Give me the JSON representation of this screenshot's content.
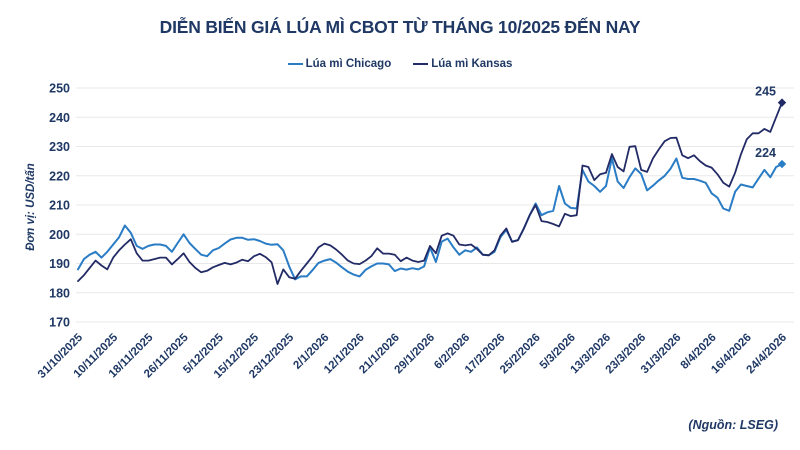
{
  "title": "DIỄN BIẾN GIÁ LÚA MÌ CBOT TỪ THÁNG 10/2025 ĐẾN NAY",
  "source_note": "(Nguồn: LSEG)",
  "y_axis_unit_label": "Đơn vị: USD/tấn",
  "colors": {
    "chicago": "#2A7CC5",
    "kansas": "#232B66",
    "text_navy": "#1F3864",
    "gridline": "#E8E8E8"
  },
  "legend": [
    {
      "label": "Lúa mì Chicago",
      "color_key": "chicago"
    },
    {
      "label": "Lúa mì Kansas",
      "color_key": "kansas"
    }
  ],
  "end_labels": {
    "kansas": "245",
    "chicago": "224"
  },
  "chart_data": {
    "type": "line",
    "title": "DIỄN BIẾN GIÁ LÚA MÌ CBOT TỪ THÁNG 10/2025 ĐẾN NAY",
    "xlabel": "",
    "ylabel": "Đơn vị: USD/tấn",
    "ylim": [
      170,
      250
    ],
    "y_ticks": [
      170,
      180,
      190,
      200,
      210,
      220,
      230,
      240,
      250
    ],
    "grid": "horizontal",
    "legend_position": "top",
    "ticks_every_n_points": 6,
    "x_tick_labels": [
      "31/10/2025",
      "10/11/2025",
      "18/11/2025",
      "26/11/2025",
      "5/12/2025",
      "15/12/2025",
      "23/12/2025",
      "2/1/2026",
      "12/1/2026",
      "21/1/2026",
      "29/1/2026",
      "6/2/2026",
      "17/2/2026",
      "25/2/2026",
      "5/3/2026",
      "13/3/2026",
      "23/3/2026",
      "31/3/2026",
      "8/4/2026",
      "16/4/2026",
      "24/4/2026"
    ],
    "series": [
      {
        "name": "Lúa mì Chicago",
        "color": "#2A7CC5",
        "end_value_label": "224",
        "values": [
          188,
          191.5,
          193,
          194,
          192,
          194,
          196.5,
          199,
          203,
          200.5,
          196,
          195,
          196,
          196.5,
          196.5,
          196,
          194,
          197,
          200,
          197,
          195,
          193,
          192.5,
          194.5,
          195.3,
          196.8,
          198.2,
          198.8,
          198.8,
          198.1,
          198.3,
          197.7,
          196.8,
          196.4,
          196.6,
          194.5,
          189,
          184.6,
          185.6,
          185.6,
          187.8,
          190.2,
          191,
          191.5,
          190.3,
          188.7,
          187.2,
          186.2,
          185.6,
          187.8,
          189,
          190,
          190,
          189.7,
          187.4,
          188.3,
          187.9,
          188.4,
          188,
          189,
          195.5,
          190.5,
          197.5,
          198.5,
          195.5,
          193,
          194.5,
          194,
          195.5,
          193,
          192.8,
          194,
          199,
          201.5,
          197.5,
          198,
          202,
          206.5,
          210.5,
          206.5,
          207.5,
          208,
          216.5,
          210.5,
          209,
          208.8,
          222,
          218,
          216.5,
          214.5,
          216.5,
          226,
          218,
          215.8,
          219.5,
          222.5,
          220.6,
          215,
          216.6,
          218.4,
          220,
          222.4,
          225.9,
          219.3,
          218.9,
          218.9,
          218.3,
          217.6,
          214,
          212.5,
          208.8,
          208,
          214.5,
          217,
          216.5,
          216,
          219,
          222,
          219.5,
          223,
          224
        ]
      },
      {
        "name": "Lúa mì Kansas",
        "color": "#232B66",
        "end_value_label": "245",
        "values": [
          184,
          186,
          188.5,
          191,
          189.3,
          188,
          192,
          194.5,
          196.5,
          198.3,
          193.5,
          191,
          191,
          191.5,
          192,
          192,
          189.7,
          191.5,
          193.5,
          190.5,
          188.5,
          187,
          187.5,
          188.7,
          189.5,
          190.2,
          189.7,
          190.3,
          191.3,
          190.8,
          192.5,
          193.3,
          192.2,
          190.4,
          183,
          188,
          185.3,
          184.8,
          187.5,
          190,
          192.5,
          195.5,
          196.8,
          196.2,
          194.8,
          193,
          191,
          190,
          189.8,
          191,
          192.5,
          195.2,
          193.4,
          193.4,
          193,
          190.8,
          192,
          191,
          190.5,
          191,
          196,
          193.5,
          199.5,
          200.3,
          199.5,
          196.5,
          196.2,
          196.5,
          195,
          193,
          192.8,
          194.5,
          199.5,
          202,
          197.4,
          198,
          202,
          206.5,
          210,
          204.5,
          204.2,
          203.5,
          202.7,
          207,
          206.2,
          206.5,
          223.5,
          223,
          218.5,
          220.5,
          221,
          227.4,
          223,
          221.5,
          229.9,
          230.1,
          222,
          221.3,
          225.9,
          229,
          231.8,
          232.9,
          233,
          227,
          226,
          227,
          225,
          223.5,
          222.8,
          220.5,
          217.6,
          216.3,
          221,
          227.3,
          232.5,
          234.5,
          234.5,
          236,
          235,
          240,
          245
        ]
      }
    ]
  }
}
